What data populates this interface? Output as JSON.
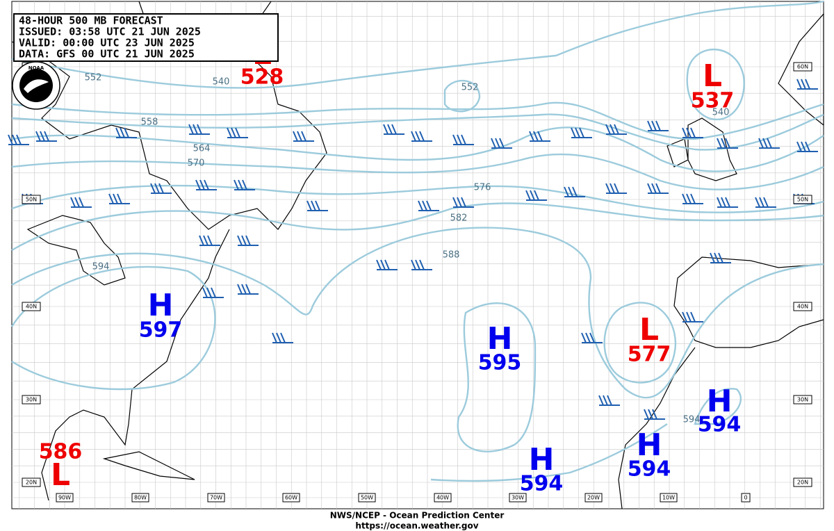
{
  "header": {
    "lines": [
      "48-HOUR 500 MB FORECAST",
      "ISSUED:  03:58 UTC 21 JUN 2025",
      "VALID:   00:00 UTC 23 JUN 2025",
      "DATA:   GFS 00 UTC 21 JUN 2025"
    ]
  },
  "logo": "NOAA",
  "centers": [
    {
      "type": "L",
      "value": "528"
    },
    {
      "type": "L",
      "value": "537"
    },
    {
      "type": "H",
      "value": "597"
    },
    {
      "type": "H",
      "value": "595"
    },
    {
      "type": "L",
      "value": "577"
    },
    {
      "type": "H",
      "value": "594"
    },
    {
      "type": "H",
      "value": "594"
    },
    {
      "type": "H",
      "value": "594"
    },
    {
      "type": "L",
      "value": "586"
    }
  ],
  "contour_labels": [
    "552",
    "540",
    "552",
    "558",
    "564",
    "570",
    "576",
    "582",
    "588",
    "594",
    "540",
    "594"
  ],
  "lat_labels": [
    "60N",
    "50N",
    "40N",
    "30N",
    "20N"
  ],
  "lon_labels": [
    "90W",
    "80W",
    "70W",
    "60W",
    "50W",
    "40W",
    "30W",
    "20W",
    "10W",
    "0"
  ],
  "footer": [
    "NWS/NCEP - Ocean Prediction Center",
    "https://ocean.weather.gov"
  ]
}
